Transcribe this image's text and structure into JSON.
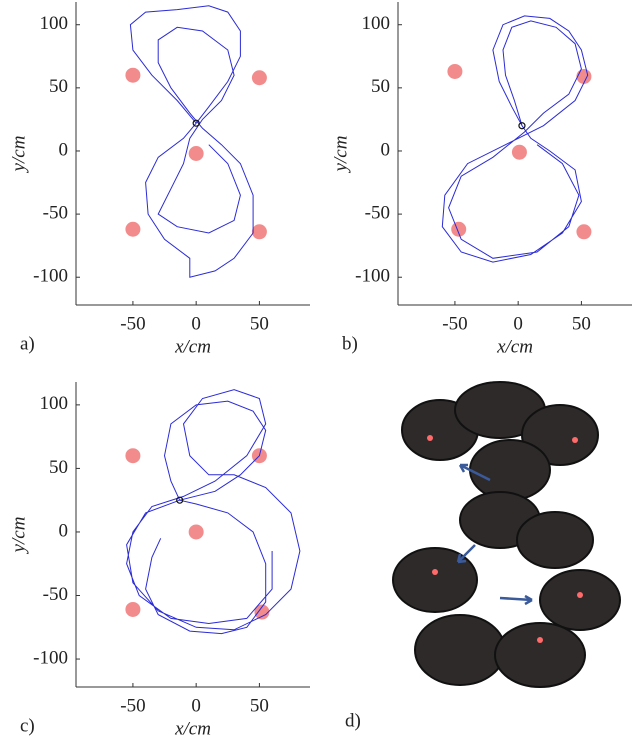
{
  "chart_data": [
    {
      "type": "line",
      "panel_label": "a)",
      "x_label": "x/cm",
      "y_label": "y/cm",
      "xlim": [
        -95,
        90
      ],
      "ylim": [
        -122,
        118
      ],
      "xticks": [
        -50,
        0,
        50
      ],
      "yticks": [
        -100,
        -50,
        0,
        50,
        100
      ],
      "series": [
        {
          "color": "#2b2bd6",
          "x": [
            0,
            -15,
            -35,
            -50,
            -52,
            -40,
            -15,
            10,
            25,
            35,
            35,
            25,
            10,
            0,
            -10,
            -30,
            -40,
            -38,
            -25,
            -5,
            -5,
            15,
            30,
            45,
            45,
            35,
            20,
            5,
            -5,
            -20,
            -30,
            -30,
            -15,
            5,
            25,
            30,
            20,
            5,
            -5,
            -10,
            -20,
            -30,
            -15,
            10,
            30,
            35,
            25,
            10
          ],
          "values": [
            22,
            40,
            60,
            80,
            100,
            110,
            112,
            115,
            110,
            95,
            75,
            55,
            35,
            22,
            10,
            -5,
            -25,
            -50,
            -70,
            -85,
            -100,
            -95,
            -85,
            -65,
            -35,
            -10,
            5,
            18,
            30,
            50,
            70,
            88,
            98,
            95,
            80,
            60,
            40,
            25,
            10,
            -10,
            -30,
            -50,
            -60,
            -65,
            -55,
            -35,
            -10,
            5
          ]
        }
      ],
      "markers": {
        "color": "#f28b8b",
        "x": [
          -50,
          50,
          0,
          -50,
          50
        ],
        "values": [
          60,
          58,
          -2,
          -62,
          -64
        ]
      },
      "origin_marker": {
        "x": 0,
        "value": 22
      }
    },
    {
      "type": "line",
      "panel_label": "b)",
      "x_label": "x/cm",
      "y_label": "y/cm",
      "xlim": [
        -95,
        90
      ],
      "ylim": [
        -122,
        118
      ],
      "xticks": [
        -50,
        0,
        50
      ],
      "yticks": [
        -100,
        -50,
        0,
        50,
        100
      ],
      "series": [
        {
          "color": "#2b2bd6",
          "x": [
            3,
            -5,
            -15,
            -20,
            -12,
            5,
            25,
            40,
            50,
            55,
            45,
            20,
            -10,
            -40,
            -58,
            -60,
            -45,
            -20,
            10,
            35,
            50,
            45,
            25,
            10,
            3,
            -3,
            -10,
            -12,
            -5,
            10,
            30,
            45,
            50,
            40,
            20,
            5,
            -20,
            -45,
            -55,
            -45,
            -20,
            15,
            40,
            48,
            35,
            15
          ],
          "values": [
            20,
            35,
            55,
            80,
            100,
            107,
            105,
            95,
            80,
            60,
            40,
            20,
            5,
            -10,
            -35,
            -60,
            -80,
            -88,
            -82,
            -65,
            -40,
            -15,
            0,
            10,
            20,
            40,
            60,
            80,
            98,
            103,
            98,
            85,
            65,
            45,
            30,
            15,
            -5,
            -20,
            -45,
            -70,
            -85,
            -80,
            -60,
            -35,
            -10,
            5
          ]
        }
      ],
      "markers": {
        "color": "#f28b8b",
        "x": [
          -50,
          52,
          1,
          -47,
          52
        ],
        "values": [
          63,
          59,
          -1,
          -62,
          -64
        ]
      },
      "origin_marker": {
        "x": 3,
        "value": 20
      }
    },
    {
      "type": "line",
      "panel_label": "c)",
      "x_label": "x/cm",
      "y_label": "y/cm",
      "xlim": [
        -95,
        90
      ],
      "ylim": [
        -122,
        118
      ],
      "xticks": [
        -50,
        0,
        50
      ],
      "yticks": [
        -100,
        -50,
        0,
        50,
        100
      ],
      "series": [
        {
          "color": "#2b2bd6",
          "x": [
            -28,
            -35,
            -40,
            -30,
            -5,
            20,
            40,
            55,
            55,
            45,
            25,
            0,
            -13,
            -20,
            -25,
            -20,
            0,
            25,
            45,
            55,
            50,
            35,
            15,
            -13,
            -40,
            -55,
            -50,
            -30,
            0,
            30,
            55,
            75,
            82,
            75,
            55,
            30,
            10,
            -5,
            -10,
            5,
            30,
            50,
            55,
            40,
            15,
            -10,
            -35,
            -50,
            -55,
            -45,
            -20,
            10,
            40,
            60,
            60
          ],
          "values": [
            -5,
            -20,
            -45,
            -65,
            -78,
            -80,
            -75,
            -55,
            -25,
            0,
            15,
            22,
            25,
            40,
            60,
            85,
            100,
            103,
            95,
            80,
            60,
            45,
            32,
            25,
            15,
            -10,
            -40,
            -62,
            -75,
            -77,
            -65,
            -45,
            -15,
            15,
            35,
            45,
            45,
            60,
            85,
            105,
            112,
            105,
            85,
            60,
            40,
            28,
            20,
            0,
            -25,
            -50,
            -68,
            -72,
            -68,
            -45,
            -15
          ]
        }
      ],
      "markers": {
        "color": "#f28b8b",
        "x": [
          -50,
          50,
          0,
          -50,
          52
        ],
        "values": [
          60,
          60,
          0,
          -61,
          -63
        ]
      },
      "origin_marker": {
        "x": -13,
        "value": 25
      }
    }
  ],
  "photo": {
    "label": "d)"
  }
}
